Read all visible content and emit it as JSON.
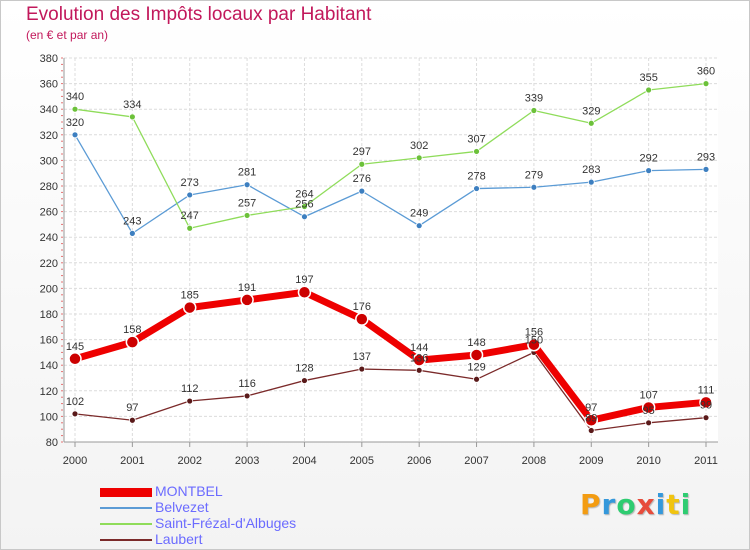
{
  "title": "Evolution des Impôts locaux par Habitant",
  "subtitle": "(en € et par an)",
  "logo": {
    "letters": [
      "P",
      "r",
      "o",
      "x",
      "i",
      "t",
      "i"
    ],
    "colors": [
      "#f39c12",
      "#3498db",
      "#2ecc71",
      "#e74c3c",
      "#3498db",
      "#f1c40f",
      "#2ecc71"
    ]
  },
  "chart_data": {
    "type": "line",
    "x": [
      "2000",
      "2001",
      "2002",
      "2003",
      "2004",
      "2005",
      "2006",
      "2007",
      "2008",
      "2009",
      "2010",
      "2011"
    ],
    "ylim": [
      80,
      380
    ],
    "yticks": [
      "80",
      "100",
      "120",
      "140",
      "160",
      "180",
      "200",
      "220",
      "240",
      "260",
      "280",
      "300",
      "320",
      "340",
      "360",
      "380"
    ],
    "grid": true,
    "legend_position": "bottom-left",
    "series": [
      {
        "name": "MONTBEL",
        "color": "#ee0000",
        "values": [
          145,
          158,
          185,
          191,
          197,
          176,
          144,
          148,
          156,
          97,
          107,
          111
        ],
        "labels": [
          "145",
          "158",
          "185",
          "191",
          "197",
          "176",
          "144",
          "148",
          "156",
          "97",
          "107",
          "111"
        ]
      },
      {
        "name": "Belvezet",
        "color": "#5b9bd5",
        "values": [
          320,
          243,
          273,
          281,
          256,
          276,
          249,
          278,
          279,
          283,
          292,
          293
        ],
        "labels": [
          "320",
          "243",
          "273",
          "281",
          "256",
          "276",
          "249",
          "278",
          "279",
          "283",
          "292",
          "293"
        ]
      },
      {
        "name": "Saint-Frézal-d'Albuges",
        "color": "#8fdc5a",
        "values": [
          340,
          334,
          247,
          257,
          264,
          297,
          302,
          307,
          339,
          329,
          355,
          360
        ],
        "labels": [
          "340",
          "334",
          "247",
          "257",
          "264",
          "297",
          "302",
          "307",
          "339",
          "329",
          "355",
          "360"
        ]
      },
      {
        "name": "Laubert",
        "color": "#7b2a2a",
        "values": [
          102,
          97,
          112,
          116,
          128,
          137,
          136,
          129,
          150,
          89,
          95,
          99
        ],
        "labels": [
          "102",
          "97",
          "112",
          "116",
          "128",
          "137",
          "136",
          "129",
          "150",
          "89",
          "95",
          "99"
        ]
      }
    ]
  }
}
